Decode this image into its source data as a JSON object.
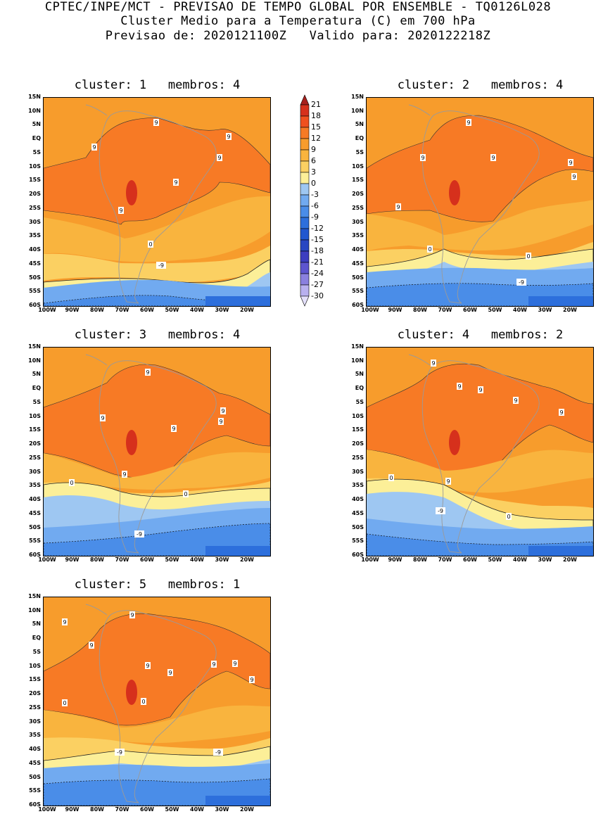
{
  "header": {
    "line1": "CPTEC/INPE/MCT - PREVISAO DE TEMPO GLOBAL POR ENSEMBLE - TQ0126L028",
    "line2": "Cluster Medio para a Temperatura (C) em 700 hPa",
    "line3": "Previsao de: 2020121100Z   Valido para: 2020122218Z"
  },
  "axes": {
    "lat_labels": [
      "15N",
      "10N",
      "5N",
      "EQ",
      "5S",
      "10S",
      "15S",
      "20S",
      "25S",
      "30S",
      "35S",
      "40S",
      "45S",
      "50S",
      "55S",
      "60S"
    ],
    "lon_labels": [
      "100W",
      "90W",
      "80W",
      "70W",
      "60W",
      "50W",
      "40W",
      "30W",
      "20W"
    ]
  },
  "colorbar": {
    "labels": [
      "21",
      "18",
      "15",
      "12",
      "9",
      "6",
      "3",
      "0",
      "-3",
      "-6",
      "-9",
      "-12",
      "-15",
      "-18",
      "-21",
      "-24",
      "-27",
      "-30"
    ],
    "colors": [
      "#a8201d",
      "#d6301c",
      "#f0501f",
      "#f77a25",
      "#f79c2c",
      "#f9b43e",
      "#fbd062",
      "#fcef98",
      "#9ec7f2",
      "#71aaf0",
      "#4a8de8",
      "#2d6fdc",
      "#2157cf",
      "#2846c2",
      "#3d3ec0",
      "#5d55cf",
      "#8a80df",
      "#b8b0ef",
      "#e4e0fa"
    ]
  },
  "clusters": [
    {
      "title": "cluster: 1   membros: 4",
      "contour_labels": [
        "9",
        "9",
        "9",
        "9",
        "9",
        "9",
        "0",
        "-9"
      ]
    },
    {
      "title": "cluster: 2   membros: 4",
      "contour_labels": [
        "9",
        "9",
        "9",
        "9",
        "9",
        "9",
        "0",
        "0",
        "-9"
      ]
    },
    {
      "title": "cluster: 3   membros: 4",
      "contour_labels": [
        "9",
        "9",
        "9",
        "9",
        "9",
        "9",
        "0",
        "0",
        "-9"
      ]
    },
    {
      "title": "cluster: 4   membros: 2",
      "contour_labels": [
        "9",
        "9",
        "9",
        "9",
        "9",
        "9",
        "0",
        "0",
        "-9"
      ]
    },
    {
      "title": "cluster: 5   membros: 1",
      "contour_labels": [
        "9",
        "9",
        "9",
        "9",
        "9",
        "9",
        "9",
        "9",
        "0",
        "0",
        "-9",
        "-9"
      ]
    }
  ]
}
